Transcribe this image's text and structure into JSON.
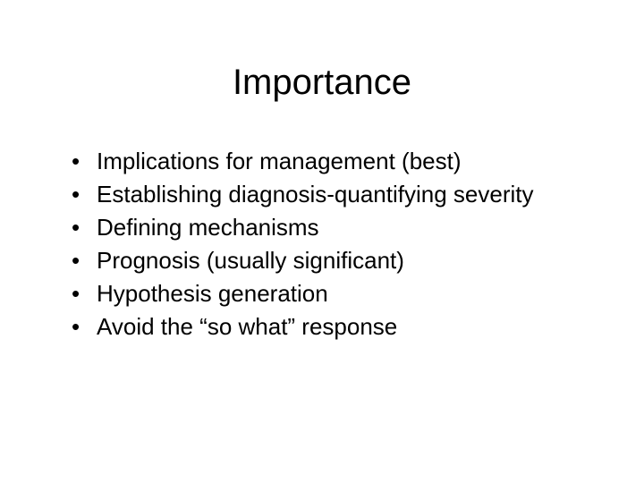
{
  "slide": {
    "title": "Importance",
    "title_fontsize": 40,
    "title_color": "#000000",
    "background_color": "#ffffff",
    "bullets": [
      "Implications for management (best)",
      "Establishing diagnosis-quantifying severity",
      "Defining mechanisms",
      "Prognosis (usually significant)",
      "Hypothesis generation",
      "Avoid the “so what” response"
    ],
    "bullet_fontsize": 26,
    "bullet_color": "#000000",
    "font_family": "Arial"
  }
}
